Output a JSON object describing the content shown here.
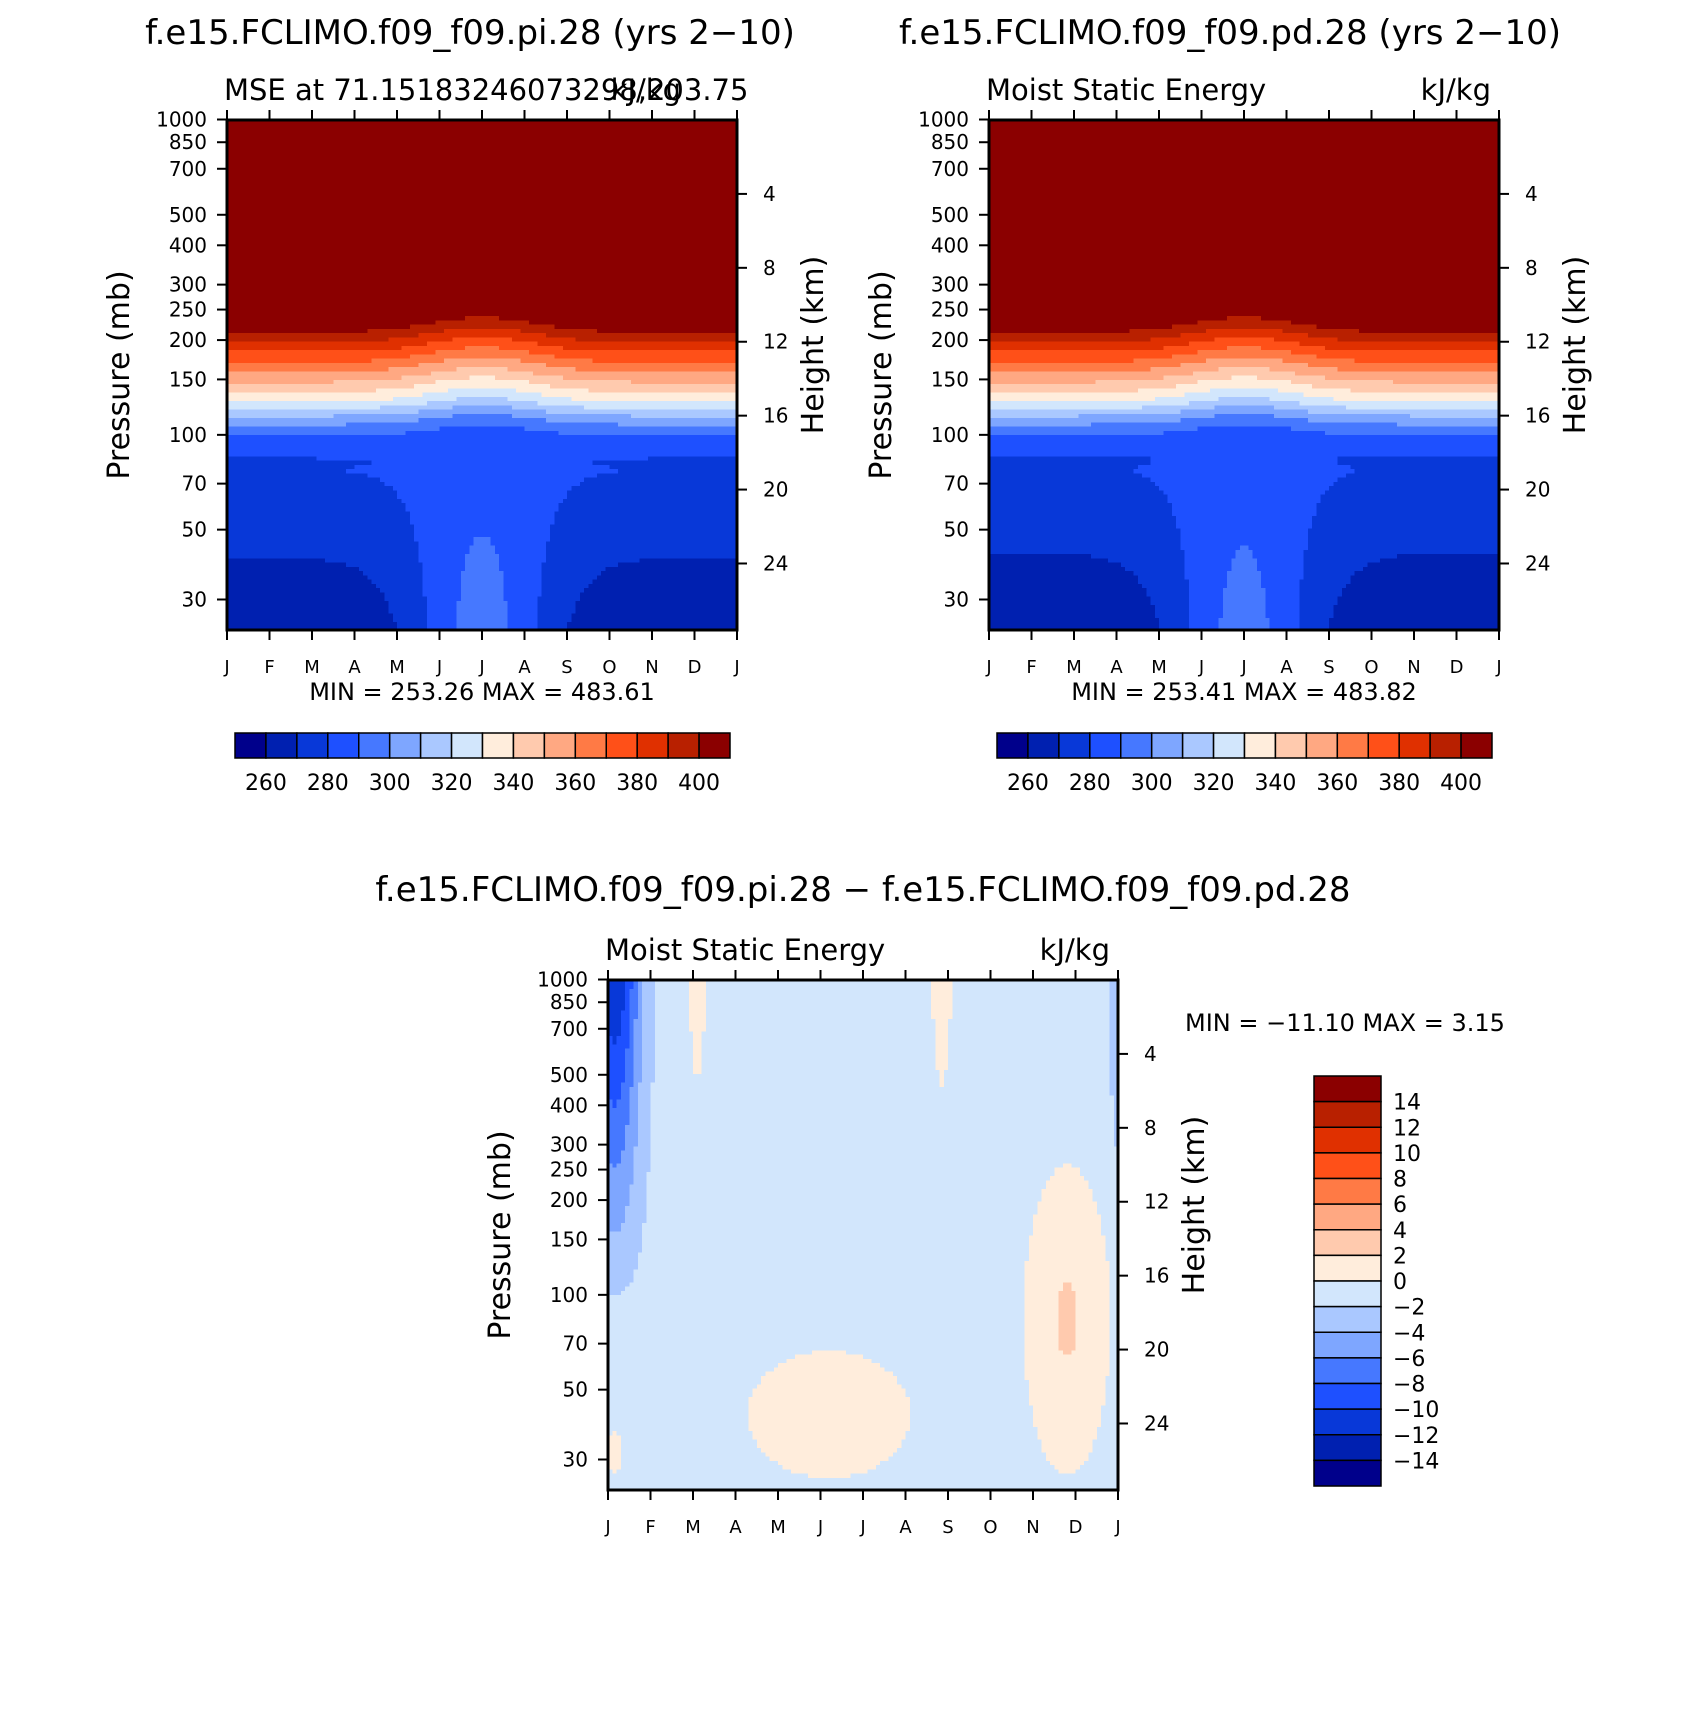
{
  "chart_data": [
    {
      "type": "contour",
      "id": "pi",
      "title": "f.e15.FCLIMO.f09_f09.pi.28 (yrs 2−10)",
      "left_label": "MSE at 71.15183246073298,203.75",
      "right_label": "kJ/kg",
      "ylabel": "Pressure (mb)",
      "ylabel_right": "Height (km)",
      "xticks": [
        "J",
        "F",
        "M",
        "A",
        "M",
        "J",
        "J",
        "A",
        "S",
        "O",
        "N",
        "D",
        "J"
      ],
      "pressure_ticks": [
        "30",
        "50",
        "70",
        "100",
        "150",
        "200",
        "250",
        "300",
        "400",
        "500",
        "700",
        "850",
        "1000"
      ],
      "height_ticks": [
        "24",
        "20",
        "16",
        "12",
        "8",
        "4"
      ],
      "stats": "MIN = 253.26 MAX = 483.61",
      "levels": [
        260,
        270,
        280,
        290,
        300,
        310,
        320,
        330,
        340,
        350,
        360,
        370,
        380,
        390,
        400
      ],
      "colorbar_labels": [
        "260",
        "280",
        "300",
        "320",
        "340",
        "360",
        "380",
        "400"
      ]
    },
    {
      "type": "contour",
      "id": "pd",
      "title": "f.e15.FCLIMO.f09_f09.pd.28 (yrs 2−10)",
      "left_label": "Moist Static Energy",
      "right_label": "kJ/kg",
      "ylabel": "Pressure (mb)",
      "ylabel_right": "Height (km)",
      "xticks": [
        "J",
        "F",
        "M",
        "A",
        "M",
        "J",
        "J",
        "A",
        "S",
        "O",
        "N",
        "D",
        "J"
      ],
      "pressure_ticks": [
        "30",
        "50",
        "70",
        "100",
        "150",
        "200",
        "250",
        "300",
        "400",
        "500",
        "700",
        "850",
        "1000"
      ],
      "height_ticks": [
        "24",
        "20",
        "16",
        "12",
        "8",
        "4"
      ],
      "stats": "MIN = 253.41 MAX = 483.82",
      "levels": [
        260,
        270,
        280,
        290,
        300,
        310,
        320,
        330,
        340,
        350,
        360,
        370,
        380,
        390,
        400
      ],
      "colorbar_labels": [
        "260",
        "280",
        "300",
        "320",
        "340",
        "360",
        "380",
        "400"
      ]
    },
    {
      "type": "contour",
      "id": "diff",
      "title": "f.e15.FCLIMO.f09_f09.pi.28 − f.e15.FCLIMO.f09_f09.pd.28",
      "left_label": "Moist Static Energy",
      "right_label": "kJ/kg",
      "ylabel": "Pressure (mb)",
      "ylabel_right": "Height (km)",
      "xticks": [
        "J",
        "F",
        "M",
        "A",
        "M",
        "J",
        "J",
        "A",
        "S",
        "O",
        "N",
        "D",
        "J"
      ],
      "pressure_ticks": [
        "30",
        "50",
        "70",
        "100",
        "150",
        "200",
        "250",
        "300",
        "400",
        "500",
        "700",
        "850",
        "1000"
      ],
      "height_ticks": [
        "24",
        "20",
        "16",
        "12",
        "8",
        "4"
      ],
      "stats": "MIN = −11.10 MAX =    3.15",
      "levels": [
        -14,
        -12,
        -10,
        -8,
        -6,
        -4,
        -2,
        0,
        2,
        4,
        6,
        8,
        10,
        12,
        14
      ],
      "colorbar_labels": [
        "14",
        "12",
        "10",
        "8",
        "6",
        "4",
        "2",
        "0",
        "−2",
        "−4",
        "−6",
        "−8",
        "−10",
        "−12",
        "−14"
      ]
    }
  ],
  "palette": [
    "#00008b",
    "#0020b0",
    "#0838d8",
    "#1e50ff",
    "#4678ff",
    "#7ea6ff",
    "#aac8ff",
    "#d2e6fc",
    "#ffeddc",
    "#ffcaae",
    "#ffa882",
    "#ff7a45",
    "#ff5018",
    "#e03000",
    "#b82000",
    "#8b0000"
  ]
}
